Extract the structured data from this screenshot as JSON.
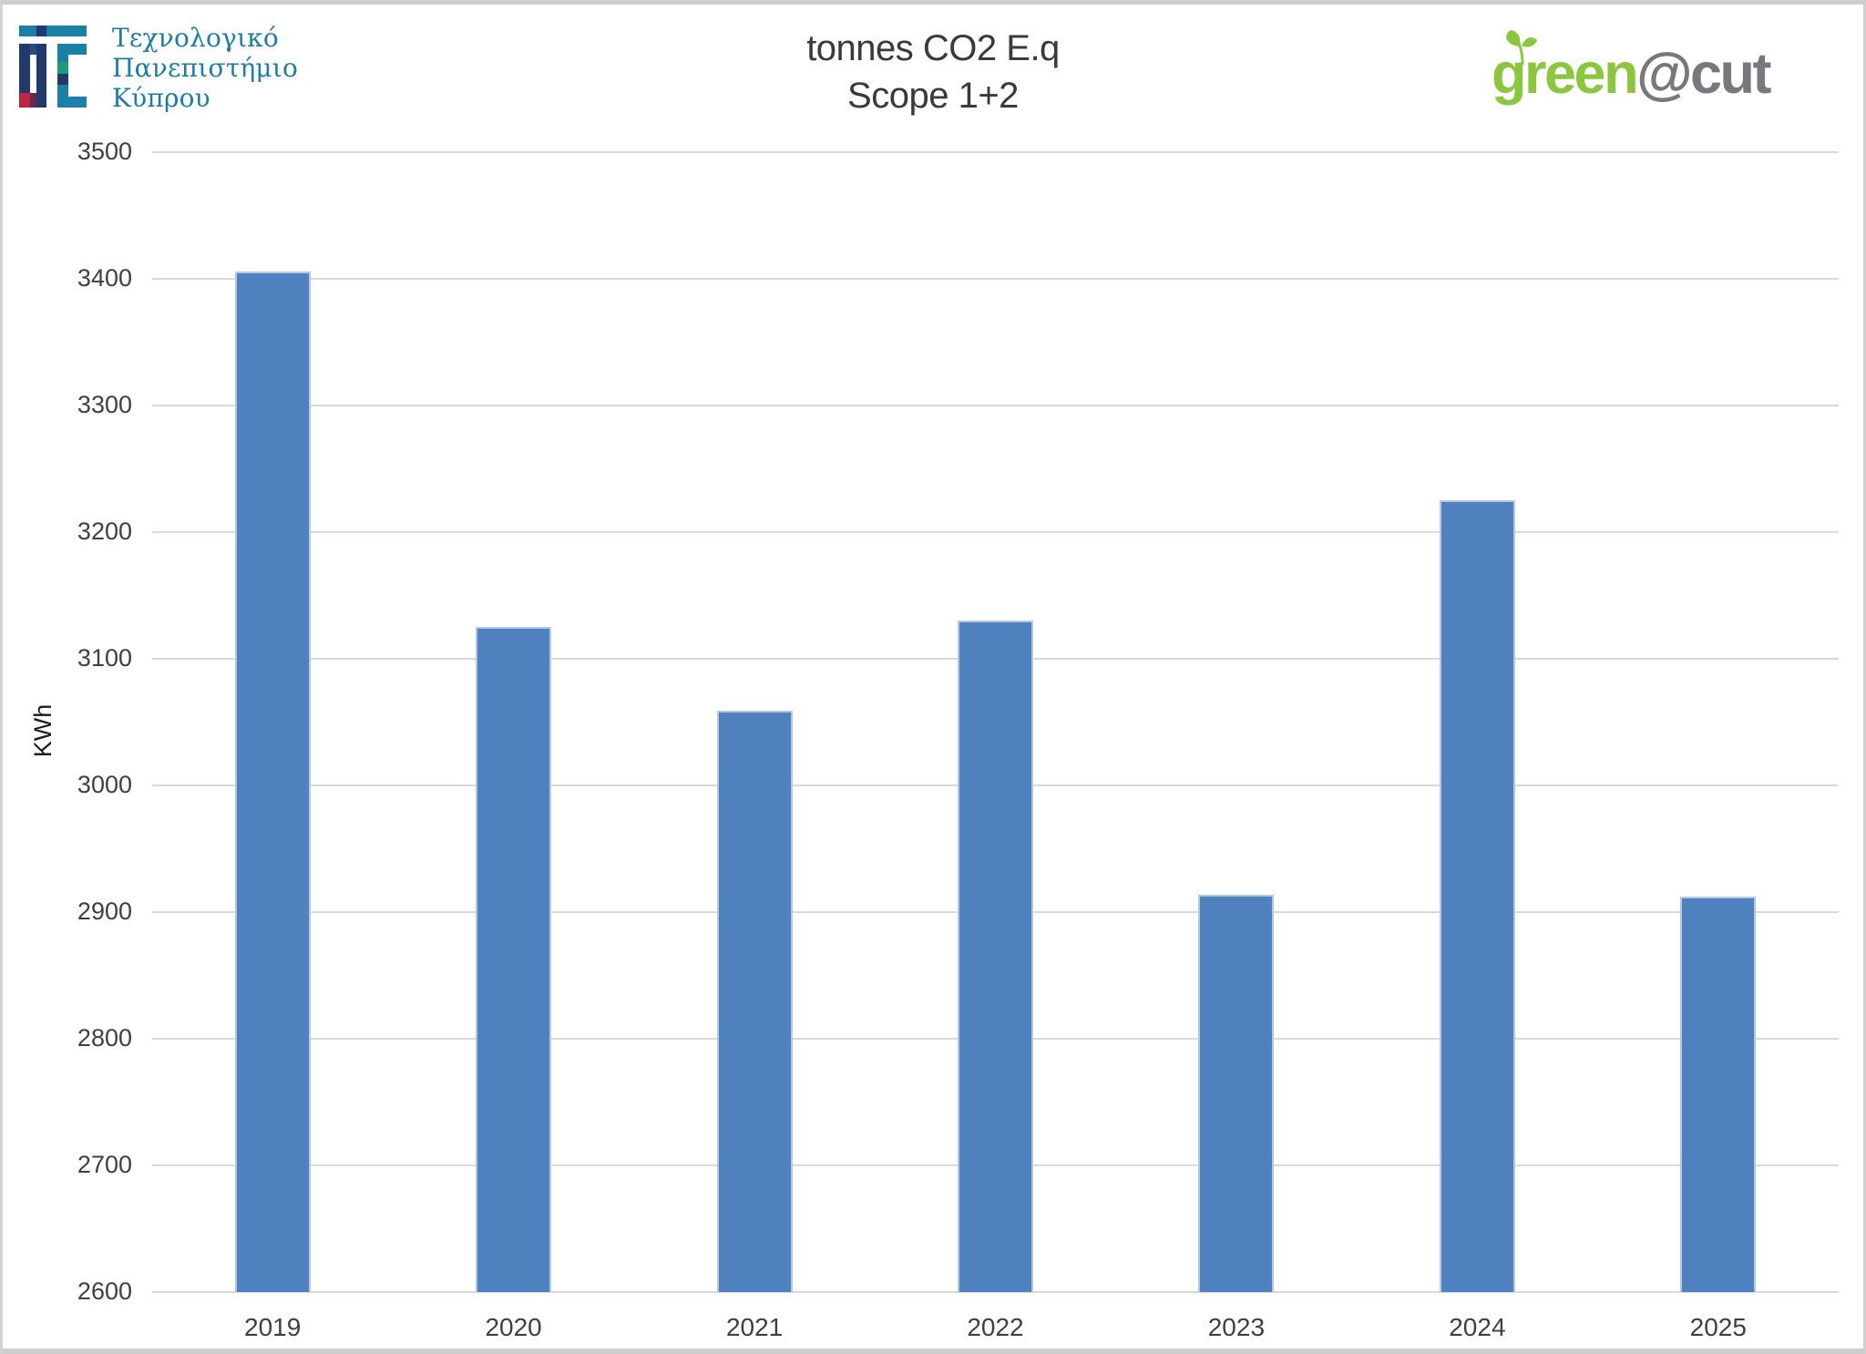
{
  "header": {
    "university_logo": {
      "lines": [
        "Τεχνολογικό",
        "Πανεπιστήμιο",
        "Κύπρου"
      ],
      "text_color": "#1f7da4",
      "mark_colors": {
        "teal": "#1b80a6",
        "navy": "#22396b",
        "navy_light": "#2c4a7c",
        "green": "#1d9c77",
        "red": "#c02340",
        "plum": "#5d2c50"
      }
    },
    "brand_logo": {
      "text_green": "green",
      "text_gray": "@cut",
      "green_color": "#8cc63f",
      "gray_color": "#77787b"
    }
  },
  "chart_data": {
    "type": "bar",
    "title_lines": [
      "tonnes CO2 E.q",
      "Scope 1+2"
    ],
    "categories": [
      "2019",
      "2020",
      "2021",
      "2022",
      "2023",
      "2024",
      "2025"
    ],
    "values": [
      3406,
      3125,
      3059,
      3130,
      2914,
      3225,
      2912
    ],
    "ylabel": "KWh",
    "xlabel": "",
    "ylim": [
      2600,
      3500
    ],
    "ytick_step": 100,
    "legend": "none",
    "grid": "horizontal",
    "bar_color": "#4e81bd",
    "bar_edge_color": "#b3c8e2",
    "gridline_color": "#d9d9d9",
    "axis_text_color": "#404040"
  }
}
